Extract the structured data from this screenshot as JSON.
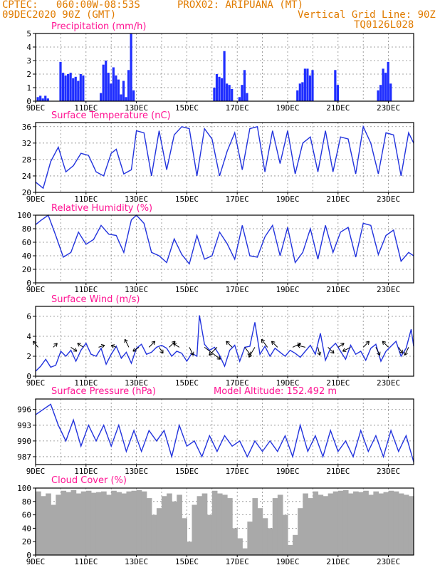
{
  "header": {
    "line1_left": "CPTEC:   060:00W-08:53S",
    "line1_mid": "PROX02: ARIPUANA (MT)",
    "line2_left": "09DEC2020 90Z (GMT)",
    "line2_right": "Vertical Grid Line: 90Z",
    "line3_right": "TQ0126L028"
  },
  "colors": {
    "header": "#e07b00",
    "title": "#ff1493",
    "line": "#2233dd",
    "bar": "#1f2eff",
    "cloud": "#a9a9a9",
    "grid": "#888888"
  },
  "x_tick_labels": [
    "9DEC",
    "11DEC",
    "13DEC",
    "15DEC",
    "17DEC",
    "19DEC",
    "21DEC",
    "23DEC"
  ],
  "chart_data": [
    {
      "type": "bar",
      "title": "Precipitation (mm/h)",
      "ylim": [
        0,
        5
      ],
      "yticks": [
        0,
        1,
        2,
        3,
        4,
        5
      ],
      "xlim_days": [
        9,
        24
      ],
      "grid": true,
      "series": [
        {
          "x": [
            9.1,
            9.2,
            9.3,
            9.4,
            9.5,
            10.0,
            10.1,
            10.2,
            10.3,
            10.4,
            10.5,
            10.6,
            10.7,
            10.8,
            10.9,
            11.6,
            11.7,
            11.8,
            11.9,
            12.0,
            12.1,
            12.2,
            12.3,
            12.4,
            12.5,
            12.6,
            12.7,
            12.8,
            12.9,
            16.1,
            16.2,
            16.3,
            16.4,
            16.5,
            16.6,
            16.7,
            16.8,
            17.1,
            17.2,
            17.3,
            17.4,
            19.4,
            19.5,
            19.6,
            19.7,
            19.8,
            19.9,
            20.0,
            20.9,
            21.0,
            22.6,
            22.7,
            22.8,
            22.9,
            23.0,
            23.1
          ],
          "values": [
            0.3,
            0.4,
            0.2,
            0.4,
            0.2,
            2.9,
            2.1,
            1.9,
            2.0,
            2.1,
            1.7,
            1.8,
            1.5,
            2.0,
            1.9,
            0.6,
            2.7,
            3.0,
            2.1,
            1.3,
            2.5,
            1.9,
            1.6,
            0.5,
            1.5,
            0.3,
            2.3,
            5.0,
            0.8,
            1.0,
            2.0,
            1.8,
            1.7,
            3.7,
            1.3,
            1.2,
            0.9,
            0.3,
            1.2,
            2.3,
            0.6,
            0.8,
            1.3,
            1.4,
            2.4,
            2.4,
            1.9,
            2.3,
            2.3,
            1.2,
            0.8,
            1.2,
            2.4,
            2.1,
            2.9,
            1.3
          ]
        }
      ]
    },
    {
      "type": "line",
      "title": "Surface Temperature (nC)",
      "ylim": [
        20,
        37
      ],
      "yticks": [
        20,
        24,
        28,
        32,
        36
      ],
      "xlim_days": [
        9,
        24
      ],
      "grid": true,
      "series": [
        {
          "x": [
            9.0,
            9.3,
            9.6,
            9.9,
            10.2,
            10.5,
            10.8,
            11.1,
            11.4,
            11.7,
            12.0,
            12.2,
            12.5,
            12.8,
            13.0,
            13.3,
            13.6,
            13.9,
            14.2,
            14.5,
            14.8,
            15.1,
            15.4,
            15.7,
            16.0,
            16.3,
            16.6,
            16.9,
            17.2,
            17.5,
            17.8,
            18.1,
            18.4,
            18.7,
            19.0,
            19.3,
            19.6,
            19.9,
            20.2,
            20.5,
            20.8,
            21.1,
            21.4,
            21.7,
            22.0,
            22.3,
            22.6,
            22.9,
            23.2,
            23.5,
            23.8,
            24.0
          ],
          "values": [
            22.5,
            21.0,
            27.5,
            31.0,
            25.0,
            26.5,
            29.5,
            29.0,
            25.0,
            24.0,
            29.5,
            30.5,
            24.5,
            25.5,
            35.0,
            34.5,
            24.0,
            35.0,
            25.5,
            34.0,
            36.0,
            35.5,
            24.0,
            35.5,
            33.0,
            24.0,
            30.0,
            34.5,
            25.5,
            35.5,
            36.0,
            25.0,
            35.0,
            27.0,
            35.0,
            24.5,
            32.0,
            33.5,
            25.0,
            35.0,
            25.0,
            33.5,
            33.0,
            24.5,
            36.0,
            32.0,
            24.5,
            34.5,
            34.0,
            24.0,
            34.5,
            32.0
          ]
        }
      ]
    },
    {
      "type": "line",
      "title": "Relative Humidity (%)",
      "ylim": [
        0,
        100
      ],
      "yticks": [
        0,
        20,
        40,
        60,
        80,
        100
      ],
      "xlim_days": [
        9,
        24
      ],
      "grid": true,
      "series": [
        {
          "x": [
            9.0,
            9.2,
            9.5,
            9.8,
            10.1,
            10.4,
            10.7,
            11.0,
            11.3,
            11.6,
            11.9,
            12.2,
            12.5,
            12.8,
            13.0,
            13.3,
            13.6,
            13.9,
            14.2,
            14.5,
            14.8,
            15.1,
            15.4,
            15.7,
            16.0,
            16.3,
            16.6,
            16.9,
            17.2,
            17.5,
            17.8,
            18.1,
            18.4,
            18.7,
            19.0,
            19.3,
            19.6,
            19.9,
            20.2,
            20.5,
            20.8,
            21.1,
            21.4,
            21.7,
            22.0,
            22.3,
            22.6,
            22.9,
            23.2,
            23.5,
            23.8,
            24.0
          ],
          "values": [
            86,
            92,
            100,
            70,
            38,
            45,
            75,
            57,
            64,
            85,
            72,
            70,
            45,
            93,
            100,
            88,
            45,
            40,
            30,
            65,
            42,
            28,
            70,
            35,
            40,
            75,
            58,
            35,
            85,
            40,
            38,
            68,
            85,
            40,
            82,
            30,
            45,
            80,
            35,
            85,
            45,
            75,
            82,
            38,
            88,
            85,
            42,
            70,
            78,
            32,
            45,
            40
          ]
        }
      ]
    },
    {
      "type": "line",
      "title": "Surface Wind (m/s)",
      "ylim": [
        0,
        7
      ],
      "yticks": [
        0,
        2,
        4,
        6
      ],
      "xlim_days": [
        9,
        24
      ],
      "grid": true,
      "series": [
        {
          "x": [
            9.0,
            9.2,
            9.4,
            9.6,
            9.8,
            10.0,
            10.2,
            10.4,
            10.6,
            10.8,
            11.0,
            11.2,
            11.4,
            11.6,
            11.8,
            12.0,
            12.2,
            12.4,
            12.6,
            12.8,
            13.0,
            13.2,
            13.4,
            13.6,
            13.8,
            14.0,
            14.2,
            14.4,
            14.6,
            14.8,
            15.0,
            15.2,
            15.4,
            15.5,
            15.7,
            15.9,
            16.1,
            16.3,
            16.5,
            16.7,
            16.9,
            17.1,
            17.3,
            17.5,
            17.7,
            17.9,
            18.1,
            18.3,
            18.5,
            18.7,
            18.9,
            19.1,
            19.3,
            19.5,
            19.7,
            19.9,
            20.1,
            20.3,
            20.5,
            20.7,
            20.9,
            21.1,
            21.3,
            21.5,
            21.7,
            21.9,
            22.1,
            22.3,
            22.5,
            22.7,
            22.9,
            23.1,
            23.3,
            23.5,
            23.7,
            23.9,
            24.0
          ],
          "values": [
            0.5,
            1.0,
            1.7,
            0.9,
            1.1,
            2.5,
            2.0,
            2.6,
            1.5,
            2.6,
            3.3,
            2.2,
            2.0,
            2.8,
            1.2,
            2.2,
            3.0,
            1.8,
            2.4,
            1.3,
            2.8,
            3.2,
            2.2,
            2.4,
            2.9,
            3.1,
            2.8,
            2.0,
            2.5,
            2.3,
            1.5,
            2.3,
            2.0,
            6.1,
            3.2,
            2.6,
            2.9,
            2.1,
            1.0,
            2.6,
            3.1,
            1.5,
            2.9,
            3.0,
            5.4,
            2.2,
            3.0,
            2.0,
            2.8,
            2.4,
            2.0,
            2.6,
            2.3,
            1.9,
            2.5,
            3.1,
            2.2,
            4.3,
            1.6,
            2.8,
            3.3,
            2.5,
            1.7,
            3.1,
            2.2,
            2.5,
            1.6,
            2.8,
            3.2,
            1.5,
            2.5,
            3.0,
            3.5,
            2.0,
            2.8,
            4.7,
            3.0
          ]
        }
      ],
      "vectors": [
        {
          "x": 9.1,
          "dx": -0.25,
          "dy": 0.3
        },
        {
          "x": 9.7,
          "dx": 0.2,
          "dy": 0.2
        },
        {
          "x": 10.4,
          "dx": 0.3,
          "dy": -0.2
        },
        {
          "x": 10.9,
          "dx": -0.3,
          "dy": 0.2
        },
        {
          "x": 11.5,
          "dx": 0.3,
          "dy": 0.1
        },
        {
          "x": 12.2,
          "dx": -0.25,
          "dy": 0.1
        },
        {
          "x": 12.7,
          "dx": -0.2,
          "dy": 0.4
        },
        {
          "x": 13.1,
          "dx": -0.3,
          "dy": -0.2
        },
        {
          "x": 13.5,
          "dx": 0.3,
          "dy": 0.3
        },
        {
          "x": 13.9,
          "dx": 0.2,
          "dy": -0.3
        },
        {
          "x": 14.3,
          "dx": 0.3,
          "dy": 0.3
        },
        {
          "x": 14.7,
          "dx": -0.3,
          "dy": 0.2
        },
        {
          "x": 15.1,
          "dx": 0.2,
          "dy": -0.4
        },
        {
          "x": 15.7,
          "dx": 0.8,
          "dy": -0.6
        },
        {
          "x": 16.2,
          "dx": -0.4,
          "dy": -0.4
        },
        {
          "x": 16.8,
          "dx": -0.3,
          "dy": 0.3
        },
        {
          "x": 17.3,
          "dx": 0.3,
          "dy": -0.4
        },
        {
          "x": 17.7,
          "dx": -0.3,
          "dy": -0.5
        },
        {
          "x": 18.2,
          "dx": -0.3,
          "dy": 0.4
        },
        {
          "x": 18.6,
          "dx": -0.3,
          "dy": 0.3
        },
        {
          "x": 19.2,
          "dx": 0.4,
          "dy": 0.2
        },
        {
          "x": 19.7,
          "dx": -0.4,
          "dy": 0.1
        },
        {
          "x": 20.2,
          "dx": 0.1,
          "dy": -0.4
        },
        {
          "x": 20.6,
          "dx": 0.3,
          "dy": -0.3
        },
        {
          "x": 21.0,
          "dx": 0.3,
          "dy": 0.2
        },
        {
          "x": 21.5,
          "dx": -0.4,
          "dy": -0.2
        },
        {
          "x": 22.0,
          "dx": 0.3,
          "dy": 0.3
        },
        {
          "x": 22.5,
          "dx": 0.2,
          "dy": -0.4
        },
        {
          "x": 23.0,
          "dx": -0.3,
          "dy": 0.3
        },
        {
          "x": 23.4,
          "dx": 0.2,
          "dy": -0.3
        },
        {
          "x": 23.8,
          "dx": -0.2,
          "dy": -0.4
        }
      ]
    },
    {
      "type": "line",
      "title": "Surface Pressure (hPa)",
      "subtitle": "Model Altitude: 152.492 m",
      "ylim": [
        985.5,
        998
      ],
      "yticks": [
        987,
        990,
        993,
        996
      ],
      "xlim_days": [
        9,
        24
      ],
      "grid": true,
      "series": [
        {
          "x": [
            9.0,
            9.3,
            9.6,
            9.9,
            10.2,
            10.5,
            10.8,
            11.1,
            11.4,
            11.7,
            12.0,
            12.3,
            12.6,
            12.9,
            13.2,
            13.5,
            13.8,
            14.1,
            14.4,
            14.7,
            15.0,
            15.3,
            15.6,
            15.9,
            16.2,
            16.5,
            16.8,
            17.1,
            17.4,
            17.7,
            18.0,
            18.3,
            18.6,
            18.9,
            19.2,
            19.5,
            19.8,
            20.1,
            20.4,
            20.7,
            21.0,
            21.3,
            21.6,
            21.9,
            22.2,
            22.5,
            22.8,
            23.1,
            23.4,
            23.7,
            24.0
          ],
          "values": [
            995,
            996,
            997,
            993,
            990,
            994,
            989,
            993,
            990,
            993,
            989,
            993,
            988,
            992,
            988,
            992,
            990,
            992,
            987,
            993,
            989,
            990,
            987,
            991,
            988,
            991,
            989,
            990,
            987,
            990,
            988,
            990,
            988,
            991,
            987,
            993,
            988,
            991,
            987,
            992,
            988,
            990,
            987,
            992,
            988,
            991,
            987,
            992,
            988,
            991,
            986
          ]
        }
      ]
    },
    {
      "type": "bar",
      "title": "Cloud Cover (%)",
      "ylim": [
        0,
        100
      ],
      "yticks": [
        0,
        20,
        40,
        60,
        80,
        100
      ],
      "xlim_days": [
        9,
        24
      ],
      "grid": true,
      "series": [
        {
          "x": [
            9.0,
            9.2,
            9.4,
            9.6,
            9.8,
            10.0,
            10.2,
            10.4,
            10.6,
            10.8,
            11.0,
            11.2,
            11.4,
            11.6,
            11.8,
            12.0,
            12.2,
            12.4,
            12.6,
            12.8,
            13.0,
            13.2,
            13.4,
            13.6,
            13.8,
            14.0,
            14.2,
            14.4,
            14.6,
            14.8,
            15.0,
            15.2,
            15.4,
            15.6,
            15.8,
            16.0,
            16.2,
            16.4,
            16.6,
            16.8,
            17.0,
            17.2,
            17.4,
            17.6,
            17.8,
            18.0,
            18.2,
            18.4,
            18.6,
            18.8,
            19.0,
            19.2,
            19.4,
            19.6,
            19.8,
            20.0,
            20.2,
            20.4,
            20.6,
            20.8,
            21.0,
            21.2,
            21.4,
            21.6,
            21.8,
            22.0,
            22.2,
            22.4,
            22.6,
            22.8,
            23.0,
            23.2,
            23.4,
            23.6,
            23.8
          ],
          "values": [
            95,
            88,
            92,
            75,
            90,
            96,
            94,
            97,
            92,
            95,
            96,
            93,
            94,
            95,
            90,
            96,
            94,
            92,
            95,
            96,
            97,
            95,
            85,
            60,
            70,
            88,
            92,
            80,
            90,
            55,
            20,
            75,
            88,
            92,
            60,
            96,
            92,
            90,
            85,
            40,
            25,
            10,
            50,
            85,
            70,
            55,
            40,
            85,
            90,
            60,
            15,
            30,
            70,
            92,
            85,
            95,
            90,
            88,
            92,
            95,
            96,
            97,
            92,
            95,
            94,
            96,
            90,
            95,
            92,
            94,
            96,
            95,
            92,
            90,
            88
          ]
        }
      ]
    }
  ]
}
